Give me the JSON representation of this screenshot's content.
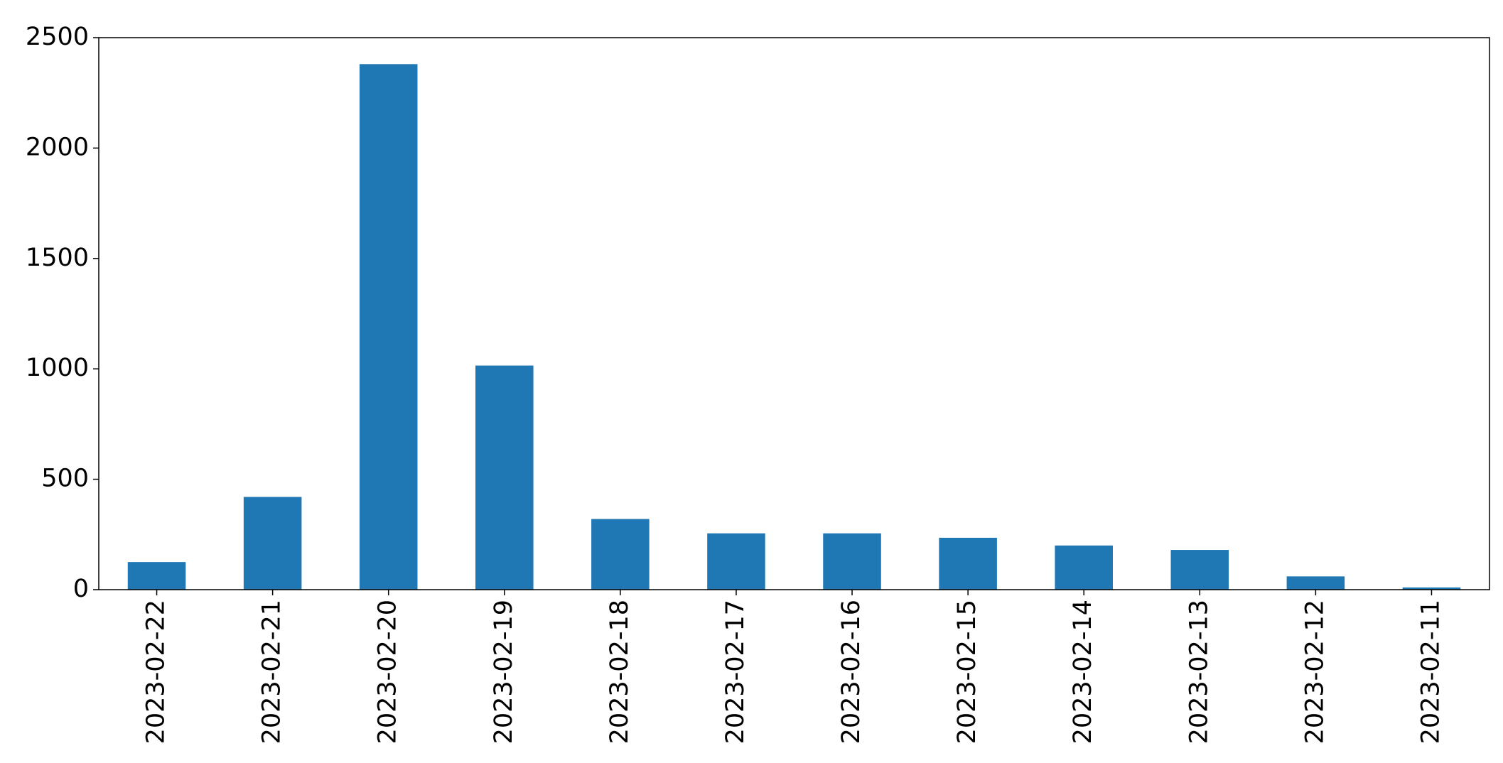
{
  "chart_data": {
    "type": "bar",
    "categories": [
      "2023-02-22",
      "2023-02-21",
      "2023-02-20",
      "2023-02-19",
      "2023-02-18",
      "2023-02-17",
      "2023-02-16",
      "2023-02-15",
      "2023-02-14",
      "2023-02-13",
      "2023-02-12",
      "2023-02-11"
    ],
    "values": [
      125,
      420,
      2380,
      1015,
      320,
      255,
      255,
      235,
      200,
      180,
      60,
      10
    ],
    "color": "#1f77b4",
    "ylim": [
      0,
      2500
    ],
    "yticks": [
      0,
      500,
      1000,
      1500,
      2000,
      2500
    ],
    "grid": false
  }
}
